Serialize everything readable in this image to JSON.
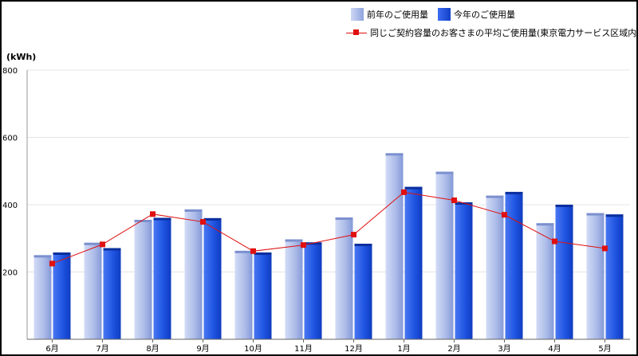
{
  "legend": {
    "prev": "前年のご使用量",
    "curr": "今年のご使用量",
    "avg": "同じご契約容量のお客さまの平均ご使用量(東京電力サービス区域内)"
  },
  "colors": {
    "prev_bar": "#a8b8e8",
    "curr_bar": "#1e52e0",
    "avg_line": "#e01010"
  },
  "chart_data": {
    "type": "bar",
    "ylabel": "(kWh)",
    "ylim": [
      0,
      800
    ],
    "yticks": [
      200,
      400,
      600,
      800
    ],
    "categories": [
      "6月",
      "7月",
      "8月",
      "9月",
      "10月",
      "11月",
      "12月",
      "1月",
      "2月",
      "3月",
      "4月",
      "5月"
    ],
    "series": [
      {
        "name": "前年のご使用量",
        "kind": "bar",
        "values": [
          250,
          287,
          355,
          386,
          263,
          297,
          362,
          553,
          498,
          427,
          345,
          375
        ]
      },
      {
        "name": "今年のご使用量",
        "kind": "bar",
        "values": [
          258,
          271,
          361,
          360,
          258,
          288,
          284,
          453,
          407,
          438,
          400,
          371
        ]
      },
      {
        "name": "同じご契約容量のお客さまの平均ご使用量(東京電力サービス区域内)",
        "kind": "line",
        "values": [
          225,
          282,
          372,
          349,
          262,
          280,
          311,
          437,
          413,
          370,
          291,
          270
        ]
      }
    ],
    "grid": true
  }
}
